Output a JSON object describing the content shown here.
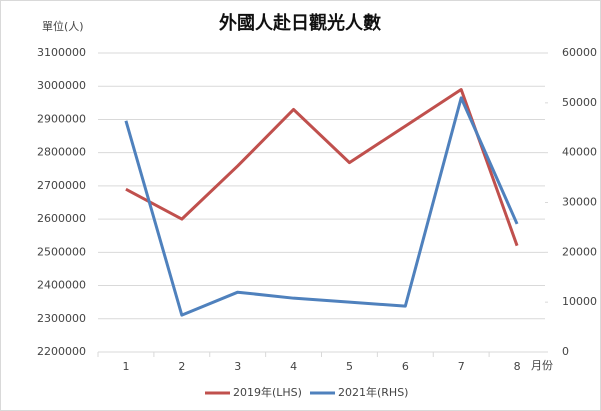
{
  "chart_data": {
    "type": "line",
    "title": "外國人赴日觀光人數",
    "y_label": "單位(人)",
    "x_label": "月份",
    "categories": [
      "1",
      "2",
      "3",
      "4",
      "5",
      "6",
      "7",
      "8"
    ],
    "series": [
      {
        "name": "2019年(LHS)",
        "color": "#c0504d",
        "values": [
          2690000,
          2600000,
          2760000,
          2930000,
          2770000,
          2880000,
          2990000,
          2520000
        ]
      },
      {
        "name": "2021年(RHS)",
        "color": "#4f81bd",
        "axis": "y2",
        "values": [
          46400,
          7400,
          12000,
          10800,
          10000,
          9200,
          51000,
          25700
        ]
      }
    ],
    "ylim": [
      2200000,
      3100000
    ],
    "yticks": [
      2200000,
      2300000,
      2400000,
      2500000,
      2600000,
      2700000,
      2800000,
      2900000,
      3000000,
      3100000
    ],
    "y2lim": [
      0,
      60000
    ],
    "y2ticks": [
      0,
      10000,
      20000,
      30000,
      40000,
      50000,
      60000
    ],
    "grid": true,
    "legend": "bottom"
  }
}
